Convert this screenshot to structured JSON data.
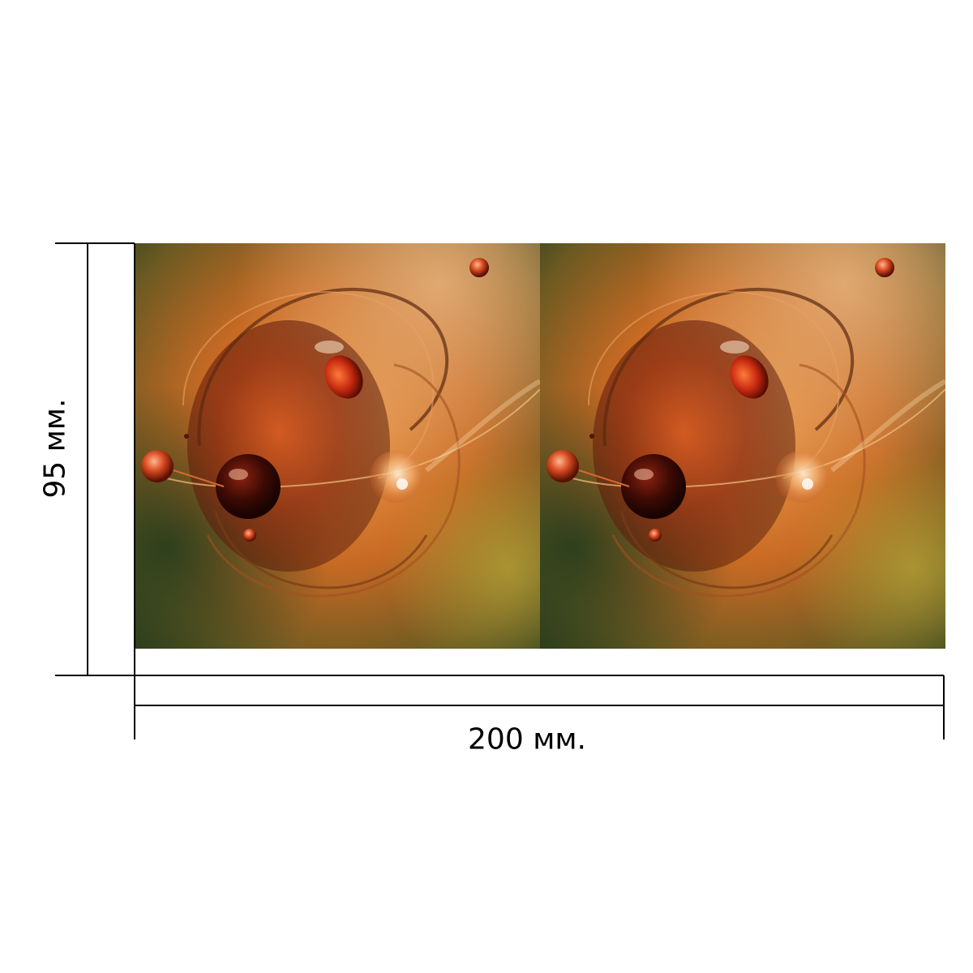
{
  "dimensions": {
    "height_label": "95 мм.",
    "width_label": "200 мм."
  },
  "product": {
    "panel_count": 2
  },
  "colors": {
    "dimension_lines": "#000000",
    "background": "#ffffff",
    "artwork_warm": "#e07a2a",
    "artwork_dark": "#5a1608",
    "artwork_green": "#3f5a22"
  }
}
